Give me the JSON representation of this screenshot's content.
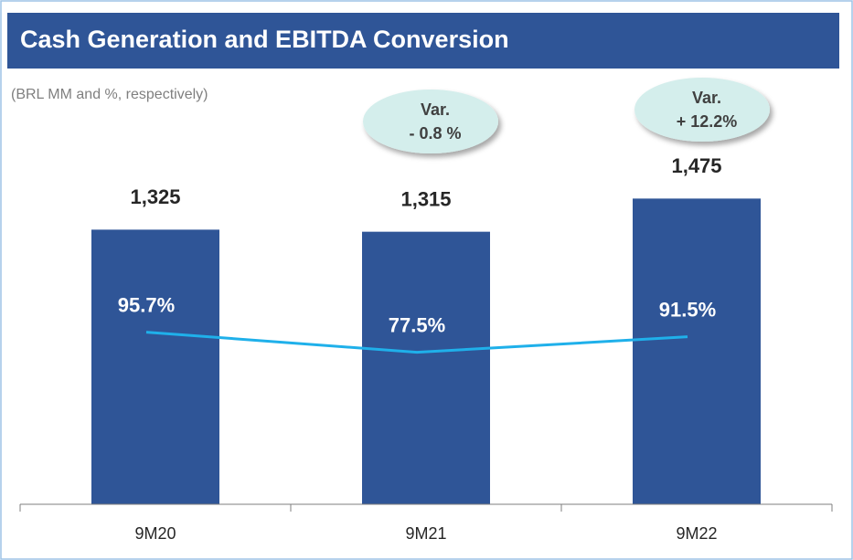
{
  "chart_data": {
    "type": "bar",
    "title": "Cash Generation and EBITDA Conversion",
    "subtitle": "(BRL MM and %, respectively)",
    "categories": [
      "9M20",
      "9M21",
      "9M22"
    ],
    "series": [
      {
        "type": "bar",
        "color": "#2f5597",
        "values": [
          1325,
          1315,
          1475
        ],
        "value_labels": [
          "1,325",
          "1,315",
          "1,475"
        ]
      },
      {
        "type": "line",
        "axis": "y2",
        "color": "#1fb0ea",
        "values": [
          95.7,
          77.5,
          91.5
        ],
        "value_labels": [
          "95.7%",
          "77.5%",
          "91.5%"
        ]
      }
    ],
    "annotations": [
      [
        "Var.",
        "- 0.8 %"
      ],
      [
        "Var.",
        "+ 12.2%"
      ]
    ],
    "ylim": [
      0,
      1600
    ],
    "y2lim": [
      -60,
      240
    ]
  }
}
